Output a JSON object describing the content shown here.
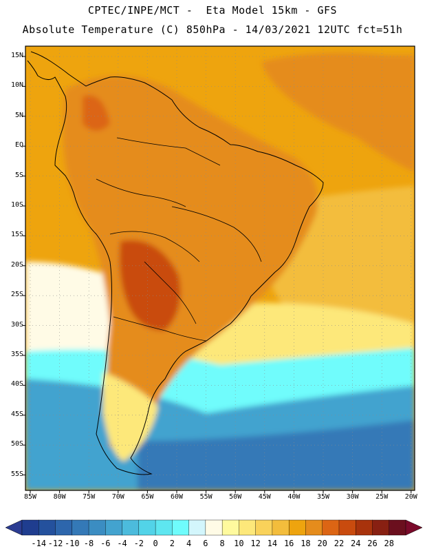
{
  "header": {
    "line1": "CPTEC/INPE/MCT -  Eta Model 15km - GFS",
    "line2": "Absolute Temperature (C) 850hPa - 14/03/2021 12UTC fct=51h"
  },
  "map": {
    "lat_labels": [
      "15N",
      "10N",
      "5N",
      "EQ",
      "5S",
      "10S",
      "15S",
      "20S",
      "25S",
      "30S",
      "35S",
      "40S",
      "45S",
      "50S",
      "55S"
    ],
    "lon_labels": [
      "85W",
      "80W",
      "75W",
      "70W",
      "65W",
      "60W",
      "55W",
      "50W",
      "45W",
      "40W",
      "35W",
      "30W",
      "25W",
      "20W"
    ],
    "lat_range": [
      -58,
      16
    ],
    "lon_range": [
      -86,
      -20
    ],
    "grid": "dotted"
  },
  "colorbar": {
    "labels": [
      "-14",
      "-12",
      "-10",
      "-8",
      "-6",
      "-4",
      "-2",
      "0",
      "2",
      "4",
      "6",
      "8",
      "10",
      "12",
      "14",
      "16",
      "18",
      "20",
      "22",
      "24",
      "26",
      "28"
    ],
    "colors": [
      "#1f3d8f",
      "#24519d",
      "#2d66ac",
      "#3479b7",
      "#3b8dc2",
      "#43a3cf",
      "#4cbbdc",
      "#52d3e8",
      "#5ee6f0",
      "#6ffcfc",
      "#d3f6fc",
      "#fffbe6",
      "#fffa9e",
      "#fde87a",
      "#f9d25a",
      "#f3bd3c",
      "#eea40e",
      "#e58c1c",
      "#dc6514",
      "#c94b0e",
      "#a8330c",
      "#882012",
      "#6b0f1e"
    ],
    "under_color": "#2b3c92",
    "over_color": "#7a0a2a"
  }
}
